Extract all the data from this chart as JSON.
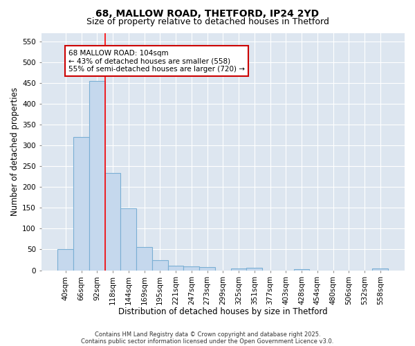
{
  "title1": "68, MALLOW ROAD, THETFORD, IP24 2YD",
  "title2": "Size of property relative to detached houses in Thetford",
  "xlabel": "Distribution of detached houses by size in Thetford",
  "ylabel": "Number of detached properties",
  "categories": [
    "40sqm",
    "66sqm",
    "92sqm",
    "118sqm",
    "144sqm",
    "169sqm",
    "195sqm",
    "221sqm",
    "247sqm",
    "273sqm",
    "299sqm",
    "325sqm",
    "351sqm",
    "377sqm",
    "403sqm",
    "428sqm",
    "454sqm",
    "480sqm",
    "506sqm",
    "532sqm",
    "558sqm"
  ],
  "values": [
    50,
    320,
    455,
    233,
    149,
    55,
    25,
    11,
    10,
    8,
    0,
    5,
    6,
    0,
    0,
    3,
    0,
    0,
    0,
    0,
    4
  ],
  "bar_color": "#c5d8ed",
  "bar_edge_color": "#7aafd4",
  "bar_edge_width": 0.8,
  "red_line_x": 2.5,
  "annotation_line1": "68 MALLOW ROAD: 104sqm",
  "annotation_line2": "← 43% of detached houses are smaller (558)",
  "annotation_line3": "55% of semi-detached houses are larger (720) →",
  "annotation_box_color": "#ffffff",
  "annotation_box_edge_color": "#cc0000",
  "ylim": [
    0,
    570
  ],
  "yticks": [
    0,
    50,
    100,
    150,
    200,
    250,
    300,
    350,
    400,
    450,
    500,
    550
  ],
  "bg_color": "#dde6f0",
  "grid_color": "#ffffff",
  "fig_bg_color": "#ffffff",
  "footer1": "Contains HM Land Registry data © Crown copyright and database right 2025.",
  "footer2": "Contains public sector information licensed under the Open Government Licence v3.0.",
  "title1_fontsize": 10,
  "title2_fontsize": 9,
  "axis_label_fontsize": 8.5,
  "tick_fontsize": 7.5,
  "annotation_fontsize": 7.5,
  "footer_fontsize": 6.0
}
